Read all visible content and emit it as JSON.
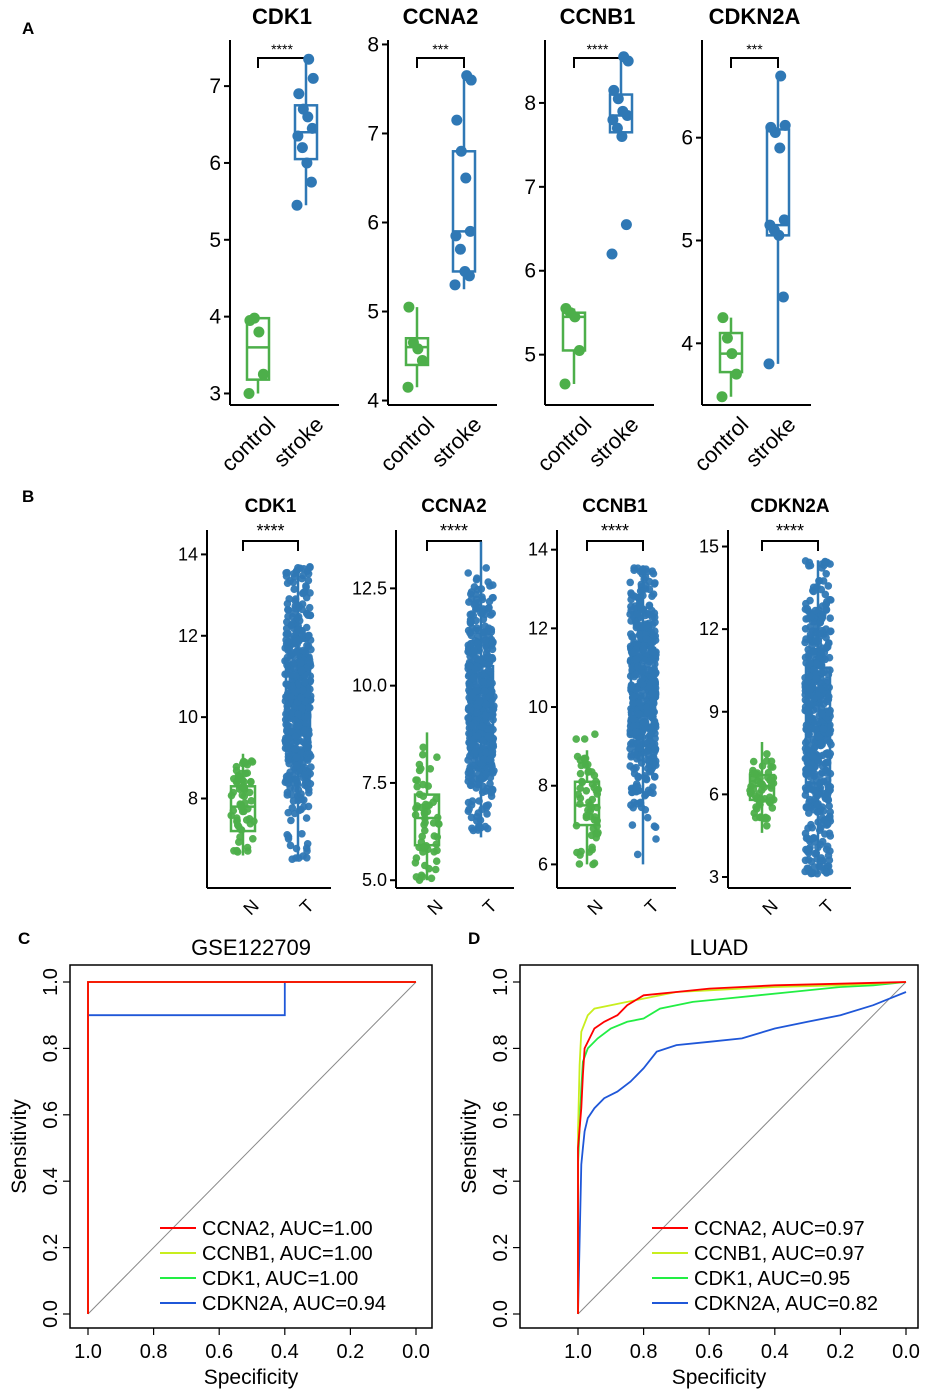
{
  "panels": {
    "A": "A",
    "B": "B",
    "C": "C",
    "D": "D"
  },
  "colors": {
    "control": "#4daf4a",
    "stroke": "#2f78b5",
    "roc": [
      "#ff0000",
      "#c8ee1e",
      "#22ee44",
      "#1f57d8"
    ],
    "diagonal": "#888888"
  },
  "chart_data": [
    {
      "type": "box",
      "panel": "A",
      "title": "CDK1",
      "categories": [
        "control",
        "stroke"
      ],
      "ylim": [
        2.85,
        7.6
      ],
      "yticks": [
        3,
        4,
        5,
        6,
        7
      ],
      "significance": "****",
      "groups": [
        {
          "name": "control",
          "box": [
            3.18,
            3.6,
            3.98
          ],
          "whiskers": [
            3.0,
            4.0
          ],
          "points": [
            3.0,
            3.25,
            3.8,
            3.98,
            3.95
          ]
        },
        {
          "name": "stroke",
          "box": [
            6.05,
            6.4,
            6.75
          ],
          "whiskers": [
            5.45,
            7.35
          ],
          "points": [
            5.45,
            5.75,
            6.0,
            6.2,
            6.35,
            6.45,
            6.6,
            6.7,
            6.9,
            7.1,
            7.35
          ]
        }
      ]
    },
    {
      "type": "box",
      "panel": "A",
      "title": "CCNA2",
      "categories": [
        "control",
        "stroke"
      ],
      "ylim": [
        3.95,
        8.05
      ],
      "yticks": [
        4,
        5,
        6,
        7,
        8
      ],
      "significance": "***",
      "groups": [
        {
          "name": "control",
          "box": [
            4.4,
            4.6,
            4.7
          ],
          "whiskers": [
            4.15,
            5.05
          ],
          "points": [
            4.15,
            4.45,
            4.58,
            4.65,
            5.05
          ]
        },
        {
          "name": "stroke",
          "box": [
            5.45,
            5.9,
            6.8
          ],
          "whiskers": [
            5.25,
            7.65
          ],
          "points": [
            5.3,
            5.4,
            5.45,
            5.7,
            5.85,
            5.9,
            6.5,
            6.8,
            7.15,
            7.6,
            7.65
          ]
        }
      ]
    },
    {
      "type": "box",
      "panel": "A",
      "title": "CCNB1",
      "categories": [
        "control",
        "stroke"
      ],
      "ylim": [
        4.4,
        8.75
      ],
      "yticks": [
        5,
        6,
        7,
        8
      ],
      "significance": "****",
      "groups": [
        {
          "name": "control",
          "box": [
            5.05,
            5.45,
            5.5
          ],
          "whiskers": [
            4.65,
            5.55
          ],
          "points": [
            4.65,
            5.05,
            5.45,
            5.5,
            5.55
          ]
        },
        {
          "name": "stroke",
          "box": [
            7.65,
            7.85,
            8.1
          ],
          "whiskers": [
            7.6,
            8.55
          ],
          "points": [
            6.2,
            6.55,
            7.6,
            7.7,
            7.8,
            7.85,
            7.9,
            8.05,
            8.15,
            8.5,
            8.55
          ]
        }
      ]
    },
    {
      "type": "box",
      "panel": "A",
      "title": "CDKN2A",
      "categories": [
        "control",
        "stroke"
      ],
      "ylim": [
        3.4,
        6.95
      ],
      "yticks": [
        4,
        5,
        6
      ],
      "significance": "***",
      "groups": [
        {
          "name": "control",
          "box": [
            3.72,
            3.9,
            4.1
          ],
          "whiskers": [
            3.48,
            4.25
          ],
          "points": [
            3.48,
            3.7,
            3.9,
            4.05,
            4.25
          ]
        },
        {
          "name": "stroke",
          "box": [
            5.05,
            5.15,
            6.08
          ],
          "whiskers": [
            3.8,
            6.6
          ],
          "points": [
            3.8,
            4.45,
            5.05,
            5.1,
            5.15,
            5.2,
            5.9,
            6.05,
            6.1,
            6.12,
            6.6
          ]
        }
      ]
    },
    {
      "type": "box",
      "panel": "B",
      "title": "CDK1",
      "categories": [
        "N",
        "T"
      ],
      "ylim": [
        5.8,
        14.6
      ],
      "yticks": [
        8,
        10,
        12,
        14
      ],
      "significance": "****",
      "groups": [
        {
          "name": "N",
          "box": [
            7.2,
            7.8,
            8.3
          ],
          "whiskers": [
            6.6,
            9.1
          ],
          "spread": [
            6.6,
            9.1
          ],
          "n": 59
        },
        {
          "name": "T",
          "box": [
            9.2,
            10.3,
            11.3
          ],
          "whiskers": [
            6.5,
            13.7
          ],
          "spread": [
            6.5,
            13.7
          ],
          "n": 500
        }
      ]
    },
    {
      "type": "box",
      "panel": "B",
      "title": "CCNA2",
      "categories": [
        "N",
        "T"
      ],
      "ylim": [
        4.8,
        14.0
      ],
      "yticks": [
        5.0,
        7.5,
        10.0,
        12.5
      ],
      "significance": "****",
      "groups": [
        {
          "name": "N",
          "box": [
            5.9,
            6.6,
            7.2
          ],
          "whiskers": [
            5.0,
            8.8
          ],
          "spread": [
            5.0,
            8.9
          ],
          "n": 59
        },
        {
          "name": "T",
          "box": [
            8.6,
            9.5,
            10.5
          ],
          "whiskers": [
            6.1,
            13.7
          ],
          "spread": [
            6.1,
            13.7
          ],
          "n": 500
        }
      ]
    },
    {
      "type": "box",
      "panel": "B",
      "title": "CCNB1",
      "categories": [
        "N",
        "T"
      ],
      "ylim": [
        5.4,
        14.5
      ],
      "yticks": [
        6,
        8,
        10,
        12,
        14
      ],
      "significance": "****",
      "groups": [
        {
          "name": "N",
          "box": [
            7.0,
            7.5,
            8.1
          ],
          "whiskers": [
            6.0,
            8.9
          ],
          "spread": [
            6.0,
            9.6
          ],
          "n": 59
        },
        {
          "name": "T",
          "box": [
            9.5,
            10.5,
            11.5
          ],
          "whiskers": [
            6.0,
            13.6
          ],
          "spread": [
            6.0,
            13.6
          ],
          "n": 500
        }
      ]
    },
    {
      "type": "box",
      "panel": "B",
      "title": "CDKN2A",
      "categories": [
        "N",
        "T"
      ],
      "ylim": [
        2.6,
        15.6
      ],
      "yticks": [
        3,
        6,
        9,
        12,
        15
      ],
      "significance": "****",
      "groups": [
        {
          "name": "N",
          "box": [
            5.8,
            6.3,
            6.7
          ],
          "whiskers": [
            4.6,
            7.9
          ],
          "spread": [
            4.6,
            8.9
          ],
          "n": 59
        },
        {
          "name": "T",
          "box": [
            6.4,
            8.6,
            10.6
          ],
          "whiskers": [
            3.1,
            14.5
          ],
          "spread": [
            3.1,
            14.5
          ],
          "n": 500
        }
      ]
    },
    {
      "type": "line",
      "panel": "C",
      "title": "GSE122709",
      "xlabel": "Specificity",
      "ylabel": "Sensitivity",
      "xlim": [
        1.0,
        0.0
      ],
      "ylim": [
        0.0,
        1.0
      ],
      "xticks": [
        1.0,
        0.8,
        0.6,
        0.4,
        0.2,
        0.0
      ],
      "yticks": [
        0.0,
        0.2,
        0.4,
        0.6,
        0.8,
        1.0
      ],
      "series": [
        {
          "name": "CCNA2",
          "legend": "CCNA2, AUC=1.00",
          "points": [
            [
              1.0,
              0.0
            ],
            [
              1.0,
              1.0
            ],
            [
              0.0,
              1.0
            ]
          ]
        },
        {
          "name": "CCNB1",
          "legend": "CCNB1, AUC=1.00",
          "points": [
            [
              1.0,
              0.0
            ],
            [
              1.0,
              1.0
            ],
            [
              0.0,
              1.0
            ]
          ]
        },
        {
          "name": "CDK1",
          "legend": "CDK1, AUC=1.00",
          "points": [
            [
              1.0,
              0.0
            ],
            [
              1.0,
              1.0
            ],
            [
              0.0,
              1.0
            ]
          ]
        },
        {
          "name": "CDKN2A",
          "legend": "CDKN2A, AUC=0.94",
          "points": [
            [
              1.0,
              0.0
            ],
            [
              1.0,
              0.9
            ],
            [
              0.4,
              0.9
            ],
            [
              0.4,
              1.0
            ],
            [
              0.0,
              1.0
            ]
          ]
        }
      ]
    },
    {
      "type": "line",
      "panel": "D",
      "title": "LUAD",
      "xlabel": "Specificity",
      "ylabel": "Sensitivity",
      "xlim": [
        1.0,
        0.0
      ],
      "ylim": [
        0.0,
        1.0
      ],
      "xticks": [
        1.0,
        0.8,
        0.6,
        0.4,
        0.2,
        0.0
      ],
      "yticks": [
        0.0,
        0.2,
        0.4,
        0.6,
        0.8,
        1.0
      ],
      "series": [
        {
          "name": "CCNA2",
          "legend": "CCNA2, AUC=0.97",
          "points": [
            [
              1.0,
              0.0
            ],
            [
              1.0,
              0.5
            ],
            [
              0.99,
              0.62
            ],
            [
              0.985,
              0.72
            ],
            [
              0.98,
              0.8
            ],
            [
              0.95,
              0.86
            ],
            [
              0.92,
              0.88
            ],
            [
              0.88,
              0.9
            ],
            [
              0.85,
              0.93
            ],
            [
              0.8,
              0.96
            ],
            [
              0.7,
              0.97
            ],
            [
              0.6,
              0.98
            ],
            [
              0.5,
              0.985
            ],
            [
              0.4,
              0.99
            ],
            [
              0.2,
              0.995
            ],
            [
              0.0,
              1.0
            ]
          ]
        },
        {
          "name": "CCNB1",
          "legend": "CCNB1, AUC=0.97",
          "points": [
            [
              1.0,
              0.0
            ],
            [
              1.0,
              0.55
            ],
            [
              0.995,
              0.75
            ],
            [
              0.99,
              0.85
            ],
            [
              0.97,
              0.9
            ],
            [
              0.95,
              0.92
            ],
            [
              0.9,
              0.93
            ],
            [
              0.85,
              0.94
            ],
            [
              0.8,
              0.95
            ],
            [
              0.7,
              0.97
            ],
            [
              0.6,
              0.975
            ],
            [
              0.5,
              0.98
            ],
            [
              0.4,
              0.985
            ],
            [
              0.2,
              0.99
            ],
            [
              0.0,
              1.0
            ]
          ]
        },
        {
          "name": "CDK1",
          "legend": "CDK1, AUC=0.95",
          "points": [
            [
              1.0,
              0.0
            ],
            [
              1.0,
              0.45
            ],
            [
              0.99,
              0.68
            ],
            [
              0.985,
              0.76
            ],
            [
              0.97,
              0.8
            ],
            [
              0.94,
              0.83
            ],
            [
              0.9,
              0.86
            ],
            [
              0.85,
              0.88
            ],
            [
              0.8,
              0.89
            ],
            [
              0.75,
              0.92
            ],
            [
              0.65,
              0.94
            ],
            [
              0.55,
              0.95
            ],
            [
              0.45,
              0.96
            ],
            [
              0.35,
              0.97
            ],
            [
              0.2,
              0.985
            ],
            [
              0.1,
              0.99
            ],
            [
              0.0,
              1.0
            ]
          ]
        },
        {
          "name": "CDKN2A",
          "legend": "CDKN2A, AUC=0.82",
          "points": [
            [
              1.0,
              0.0
            ],
            [
              0.99,
              0.45
            ],
            [
              0.985,
              0.5
            ],
            [
              0.98,
              0.55
            ],
            [
              0.97,
              0.59
            ],
            [
              0.95,
              0.62
            ],
            [
              0.92,
              0.65
            ],
            [
              0.88,
              0.67
            ],
            [
              0.84,
              0.7
            ],
            [
              0.8,
              0.74
            ],
            [
              0.76,
              0.79
            ],
            [
              0.7,
              0.81
            ],
            [
              0.6,
              0.82
            ],
            [
              0.5,
              0.83
            ],
            [
              0.4,
              0.86
            ],
            [
              0.3,
              0.88
            ],
            [
              0.2,
              0.9
            ],
            [
              0.1,
              0.93
            ],
            [
              0.05,
              0.95
            ],
            [
              0.0,
              0.97
            ]
          ]
        }
      ]
    }
  ]
}
